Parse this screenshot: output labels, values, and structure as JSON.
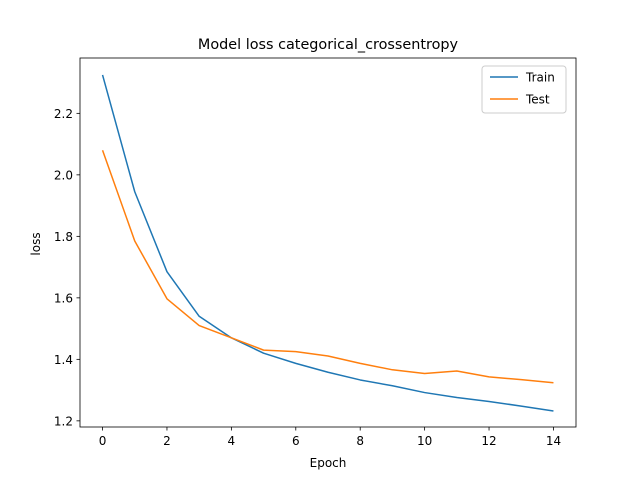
{
  "chart_data": {
    "type": "line",
    "title": "Model loss categorical_crossentropy",
    "xlabel": "Epoch",
    "ylabel": "loss",
    "x": [
      0,
      1,
      2,
      3,
      4,
      5,
      6,
      7,
      8,
      9,
      10,
      11,
      12,
      13,
      14
    ],
    "xticks": [
      0,
      2,
      4,
      6,
      8,
      10,
      12,
      14
    ],
    "yticks": [
      1.2,
      1.4,
      1.6,
      1.8,
      2.0,
      2.2
    ],
    "xlim": [
      -0.7,
      14.7
    ],
    "ylim": [
      1.18,
      2.38
    ],
    "grid": false,
    "legend_position": "top-right",
    "series": [
      {
        "name": "Train",
        "color": "#1f77b4",
        "values": [
          2.325,
          1.945,
          1.685,
          1.54,
          1.47,
          1.42,
          1.387,
          1.358,
          1.333,
          1.314,
          1.292,
          1.276,
          1.263,
          1.248,
          1.232
        ]
      },
      {
        "name": "Test",
        "color": "#ff7f0e",
        "values": [
          2.08,
          1.785,
          1.597,
          1.51,
          1.47,
          1.43,
          1.425,
          1.411,
          1.387,
          1.366,
          1.354,
          1.362,
          1.343,
          1.334,
          1.324
        ]
      }
    ]
  }
}
